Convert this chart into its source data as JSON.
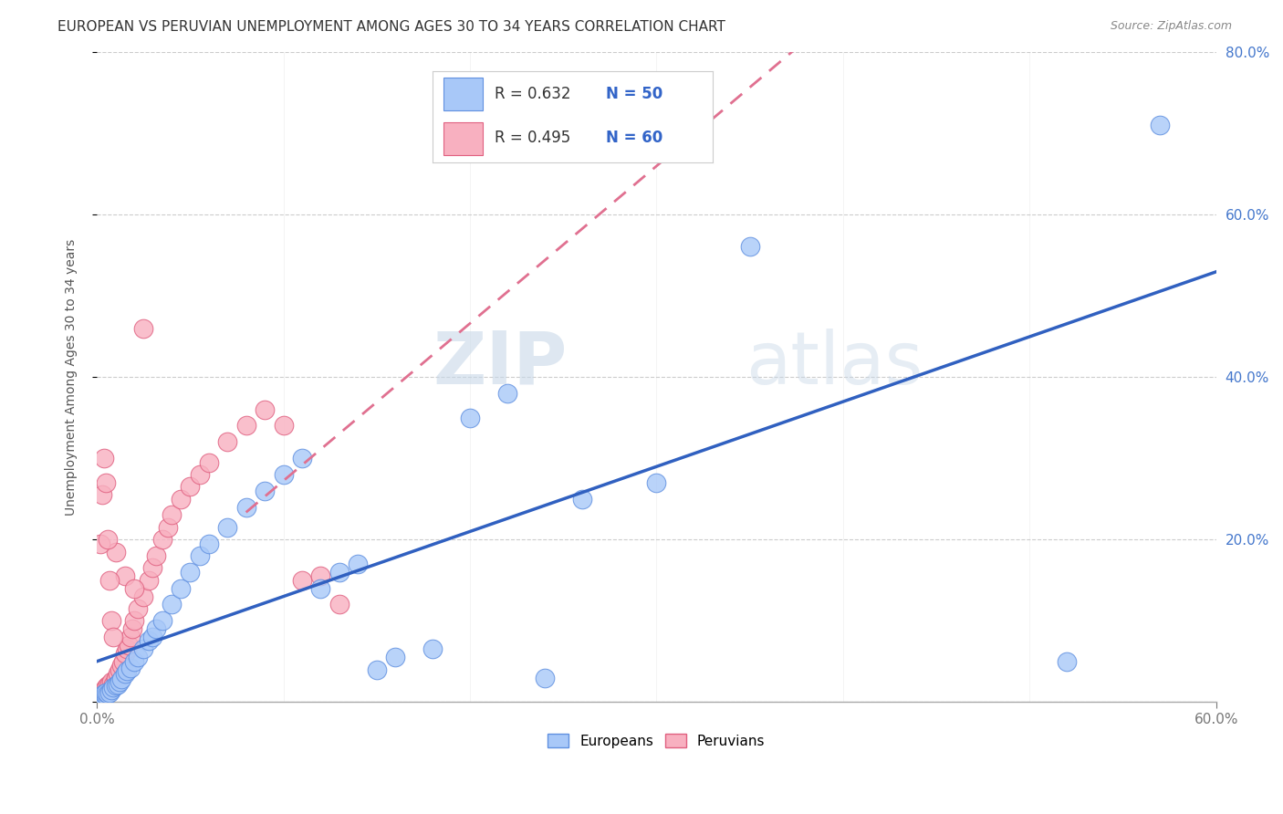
{
  "title": "EUROPEAN VS PERUVIAN UNEMPLOYMENT AMONG AGES 30 TO 34 YEARS CORRELATION CHART",
  "source": "Source: ZipAtlas.com",
  "ylabel": "Unemployment Among Ages 30 to 34 years",
  "xlim": [
    0.0,
    0.6
  ],
  "ylim": [
    0.0,
    0.8
  ],
  "xtick_positions": [
    0.0,
    0.6
  ],
  "xtick_labels": [
    "0.0%",
    "60.0%"
  ],
  "ytick_positions": [
    0.0,
    0.2,
    0.4,
    0.6,
    0.8
  ],
  "ytick_labels": [
    "",
    "20.0%",
    "40.0%",
    "60.0%",
    "80.0%"
  ],
  "european_color": "#A8C8F8",
  "peruvian_color": "#F8B0C0",
  "european_edge_color": "#6090E0",
  "peruvian_edge_color": "#E06080",
  "european_line_color": "#3060C0",
  "peruvian_line_color": "#E07090",
  "legend_text_color": "#3264C8",
  "R_european": 0.632,
  "N_european": 50,
  "R_peruvian": 0.495,
  "N_peruvian": 60,
  "watermark_zip": "ZIP",
  "watermark_atlas": "atlas",
  "background_color": "#FFFFFF",
  "grid_color": "#CCCCCC",
  "european_x": [
    0.001,
    0.002,
    0.003,
    0.003,
    0.004,
    0.004,
    0.005,
    0.005,
    0.006,
    0.007,
    0.008,
    0.009,
    0.01,
    0.011,
    0.012,
    0.013,
    0.015,
    0.016,
    0.018,
    0.02,
    0.022,
    0.025,
    0.028,
    0.03,
    0.032,
    0.035,
    0.04,
    0.045,
    0.05,
    0.055,
    0.06,
    0.07,
    0.08,
    0.09,
    0.1,
    0.11,
    0.12,
    0.13,
    0.14,
    0.15,
    0.16,
    0.18,
    0.2,
    0.22,
    0.24,
    0.26,
    0.3,
    0.35,
    0.52,
    0.57
  ],
  "european_y": [
    0.005,
    0.005,
    0.007,
    0.008,
    0.006,
    0.01,
    0.008,
    0.012,
    0.01,
    0.012,
    0.015,
    0.018,
    0.02,
    0.022,
    0.025,
    0.028,
    0.035,
    0.038,
    0.042,
    0.05,
    0.055,
    0.065,
    0.075,
    0.08,
    0.09,
    0.1,
    0.12,
    0.14,
    0.16,
    0.18,
    0.195,
    0.215,
    0.24,
    0.26,
    0.28,
    0.3,
    0.14,
    0.16,
    0.17,
    0.04,
    0.055,
    0.065,
    0.35,
    0.38,
    0.03,
    0.25,
    0.27,
    0.56,
    0.05,
    0.71
  ],
  "peruvian_x": [
    0.001,
    0.001,
    0.002,
    0.002,
    0.003,
    0.003,
    0.004,
    0.004,
    0.005,
    0.005,
    0.006,
    0.006,
    0.007,
    0.007,
    0.008,
    0.008,
    0.009,
    0.01,
    0.01,
    0.011,
    0.012,
    0.013,
    0.014,
    0.015,
    0.016,
    0.017,
    0.018,
    0.019,
    0.02,
    0.022,
    0.025,
    0.028,
    0.03,
    0.032,
    0.035,
    0.038,
    0.04,
    0.045,
    0.05,
    0.055,
    0.06,
    0.07,
    0.08,
    0.09,
    0.1,
    0.11,
    0.12,
    0.13,
    0.01,
    0.015,
    0.002,
    0.003,
    0.004,
    0.005,
    0.006,
    0.007,
    0.008,
    0.009,
    0.02,
    0.025
  ],
  "peruvian_y": [
    0.003,
    0.008,
    0.005,
    0.01,
    0.007,
    0.012,
    0.009,
    0.015,
    0.01,
    0.018,
    0.012,
    0.02,
    0.015,
    0.022,
    0.018,
    0.025,
    0.022,
    0.028,
    0.03,
    0.035,
    0.04,
    0.045,
    0.05,
    0.06,
    0.065,
    0.07,
    0.08,
    0.09,
    0.1,
    0.115,
    0.13,
    0.15,
    0.165,
    0.18,
    0.2,
    0.215,
    0.23,
    0.25,
    0.265,
    0.28,
    0.295,
    0.32,
    0.34,
    0.36,
    0.34,
    0.15,
    0.155,
    0.12,
    0.185,
    0.155,
    0.195,
    0.255,
    0.3,
    0.27,
    0.2,
    0.15,
    0.1,
    0.08,
    0.14,
    0.46
  ]
}
